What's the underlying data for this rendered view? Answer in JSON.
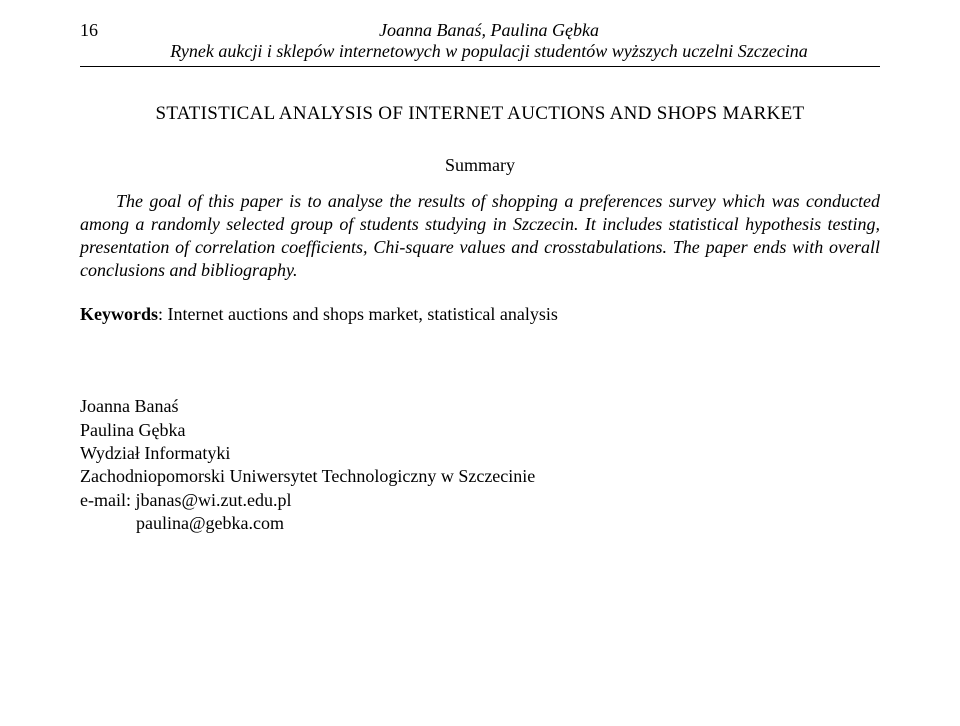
{
  "page_number": "16",
  "header": {
    "authors": "Joanna Banaś, Paulina Gębka",
    "subtitle": "Rynek aukcji i sklepów internetowych w populacji studentów wyższych uczelni Szczecina"
  },
  "title": "STATISTICAL ANALYSIS OF INTERNET AUCTIONS AND SHOPS MARKET",
  "summary_label": "Summary",
  "abstract": "The goal of this paper is to analyse the results of shopping a preferences survey which was conducted among a randomly selected group of students studying in Szczecin. It includes statistical hypothesis testing, presentation of correlation coefficients, Chi-square values and crosstabulations. The paper ends with overall conclusions and bibliography.",
  "keywords": {
    "label": "Keywords",
    "text": ": Internet auctions and shops market, statistical analysis"
  },
  "affiliation": {
    "author1": "Joanna Banaś",
    "author2": "Paulina Gębka",
    "dept": "Wydział Informatyki",
    "univ": "Zachodniopomorski Uniwersytet Technologiczny w Szczecinie",
    "email1": "e-mail: jbanas@wi.zut.edu.pl",
    "email2": "paulina@gebka.com"
  }
}
